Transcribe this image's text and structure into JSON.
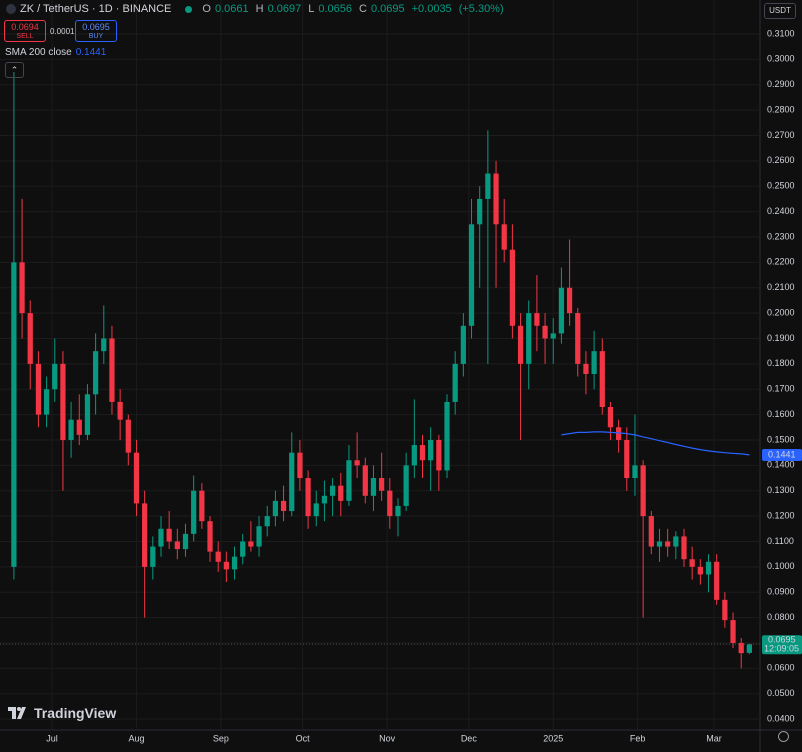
{
  "header": {
    "symbol": "ZK / TetherUS · 1D · BINANCE",
    "ohlc_labels": [
      "O",
      "H",
      "L",
      "C"
    ],
    "change": {
      "value": 0.0035,
      "label": "+0.0035"
    },
    "change_pct": {
      "value": 5.3,
      "label": "(+5.30%)"
    }
  },
  "trade": {
    "sell_price": 0.0694,
    "sell": "SELL",
    "spread": 0.0001,
    "buy_price": 0.0695,
    "buy": "BUY"
  },
  "currency": "USDT",
  "countdown": "12:09:05",
  "brand": "TradingView",
  "chart_data": {
    "type": "candlestick",
    "up_color": "#089981",
    "down_color": "#f23645",
    "open": [
      0.1,
      0.22,
      0.2,
      0.18,
      0.16,
      0.17,
      0.18,
      0.15,
      0.158,
      0.152,
      0.168,
      0.185,
      0.19,
      0.165,
      0.158,
      0.145,
      0.125,
      0.1,
      0.108,
      0.115,
      0.11,
      0.107,
      0.113,
      0.13,
      0.118,
      0.106,
      0.102,
      0.099,
      0.104,
      0.11,
      0.108,
      0.116,
      0.12,
      0.126,
      0.122,
      0.145,
      0.135,
      0.12,
      0.125,
      0.128,
      0.132,
      0.126,
      0.142,
      0.14,
      0.128,
      0.135,
      0.13,
      0.12,
      0.124,
      0.14,
      0.148,
      0.142,
      0.15,
      0.138,
      0.165,
      0.18,
      0.195,
      0.235,
      0.245,
      0.255,
      0.235,
      0.225,
      0.195,
      0.18,
      0.2,
      0.195,
      0.19,
      0.192,
      0.21,
      0.2,
      0.18,
      0.176,
      0.185,
      0.163,
      0.155,
      0.15,
      0.135,
      0.14,
      0.12,
      0.108,
      0.11,
      0.108,
      0.112,
      0.103,
      0.1,
      0.097,
      0.102,
      0.087,
      0.079,
      0.07,
      0.0661
    ],
    "high": [
      0.295,
      0.245,
      0.205,
      0.185,
      0.175,
      0.19,
      0.185,
      0.165,
      0.168,
      0.172,
      0.192,
      0.203,
      0.195,
      0.17,
      0.16,
      0.15,
      0.13,
      0.112,
      0.12,
      0.122,
      0.115,
      0.117,
      0.136,
      0.133,
      0.12,
      0.11,
      0.106,
      0.108,
      0.113,
      0.118,
      0.12,
      0.124,
      0.13,
      0.132,
      0.153,
      0.15,
      0.138,
      0.13,
      0.134,
      0.135,
      0.137,
      0.148,
      0.153,
      0.143,
      0.14,
      0.145,
      0.135,
      0.127,
      0.145,
      0.166,
      0.152,
      0.155,
      0.152,
      0.168,
      0.185,
      0.2,
      0.245,
      0.25,
      0.272,
      0.26,
      0.245,
      0.235,
      0.2,
      0.205,
      0.215,
      0.2,
      0.198,
      0.218,
      0.229,
      0.202,
      0.185,
      0.193,
      0.19,
      0.165,
      0.158,
      0.155,
      0.16,
      0.142,
      0.122,
      0.115,
      0.115,
      0.114,
      0.115,
      0.108,
      0.103,
      0.105,
      0.105,
      0.09,
      0.082,
      0.072,
      0.0697
    ],
    "low": [
      0.095,
      0.19,
      0.17,
      0.155,
      0.155,
      0.165,
      0.13,
      0.143,
      0.148,
      0.15,
      0.16,
      0.18,
      0.16,
      0.15,
      0.14,
      0.12,
      0.08,
      0.095,
      0.104,
      0.107,
      0.103,
      0.104,
      0.11,
      0.115,
      0.102,
      0.098,
      0.094,
      0.095,
      0.101,
      0.106,
      0.104,
      0.112,
      0.116,
      0.118,
      0.12,
      0.13,
      0.115,
      0.116,
      0.118,
      0.12,
      0.12,
      0.124,
      0.135,
      0.125,
      0.122,
      0.126,
      0.115,
      0.112,
      0.122,
      0.135,
      0.135,
      0.13,
      0.13,
      0.135,
      0.16,
      0.175,
      0.19,
      0.21,
      0.18,
      0.21,
      0.22,
      0.19,
      0.15,
      0.17,
      0.185,
      0.18,
      0.18,
      0.188,
      0.195,
      0.175,
      0.168,
      0.17,
      0.16,
      0.15,
      0.145,
      0.13,
      0.128,
      0.08,
      0.105,
      0.102,
      0.104,
      0.103,
      0.1,
      0.095,
      0.093,
      0.09,
      0.085,
      0.076,
      0.068,
      0.06,
      0.0656
    ],
    "close": [
      0.22,
      0.2,
      0.18,
      0.16,
      0.17,
      0.18,
      0.15,
      0.158,
      0.152,
      0.168,
      0.185,
      0.19,
      0.165,
      0.158,
      0.145,
      0.125,
      0.1,
      0.108,
      0.115,
      0.11,
      0.107,
      0.113,
      0.13,
      0.118,
      0.106,
      0.102,
      0.099,
      0.104,
      0.11,
      0.108,
      0.116,
      0.12,
      0.126,
      0.122,
      0.145,
      0.135,
      0.12,
      0.125,
      0.128,
      0.132,
      0.126,
      0.142,
      0.14,
      0.128,
      0.135,
      0.13,
      0.12,
      0.124,
      0.14,
      0.148,
      0.142,
      0.15,
      0.138,
      0.165,
      0.18,
      0.195,
      0.235,
      0.245,
      0.255,
      0.235,
      0.225,
      0.195,
      0.18,
      0.2,
      0.195,
      0.19,
      0.192,
      0.21,
      0.2,
      0.18,
      0.176,
      0.185,
      0.163,
      0.155,
      0.15,
      0.135,
      0.14,
      0.12,
      0.108,
      0.11,
      0.108,
      0.112,
      0.103,
      0.1,
      0.097,
      0.102,
      0.087,
      0.079,
      0.07,
      0.066,
      0.0695
    ],
    "overlay": {
      "name": "SMA 200 close",
      "color": "#2962ff",
      "values": [
        null,
        null,
        null,
        null,
        null,
        null,
        null,
        null,
        null,
        null,
        null,
        null,
        null,
        null,
        null,
        null,
        null,
        null,
        null,
        null,
        null,
        null,
        null,
        null,
        null,
        null,
        null,
        null,
        null,
        null,
        null,
        null,
        null,
        null,
        null,
        null,
        null,
        null,
        null,
        null,
        null,
        null,
        null,
        null,
        null,
        null,
        null,
        null,
        null,
        null,
        null,
        null,
        null,
        null,
        null,
        null,
        null,
        null,
        null,
        null,
        null,
        null,
        null,
        null,
        null,
        null,
        null,
        0.152,
        0.1525,
        0.153,
        0.153,
        0.1532,
        0.1532,
        0.153,
        0.1528,
        0.1525,
        0.152,
        0.1512,
        0.1505,
        0.1497,
        0.149,
        0.1482,
        0.1475,
        0.1468,
        0.1462,
        0.1457,
        0.1453,
        0.145,
        0.1447,
        0.1445,
        0.1441
      ]
    },
    "xlim": [
      -1.7,
      91.3
    ],
    "xticks": [
      {
        "value": 4.67,
        "label": "Jul"
      },
      {
        "value": 15,
        "label": "Aug"
      },
      {
        "value": 25.33,
        "label": "Sep"
      },
      {
        "value": 35.33,
        "label": "Oct"
      },
      {
        "value": 45.67,
        "label": "Nov"
      },
      {
        "value": 55.67,
        "label": "Dec"
      },
      {
        "value": 66,
        "label": "2025"
      },
      {
        "value": 76.33,
        "label": "Feb"
      },
      {
        "value": 85.67,
        "label": "Mar"
      }
    ],
    "ylim": [
      0.0357,
      0.3234
    ],
    "yticks": [
      {
        "value": 0.04,
        "label": "0.0400"
      },
      {
        "value": 0.05,
        "label": "0.0500"
      },
      {
        "value": 0.06,
        "label": "0.0600"
      },
      {
        "value": 0.07,
        "label": "0.0700"
      },
      {
        "value": 0.08,
        "label": "0.0800"
      },
      {
        "value": 0.09,
        "label": "0.0900"
      },
      {
        "value": 0.1,
        "label": "0.1000"
      },
      {
        "value": 0.11,
        "label": "0.1100"
      },
      {
        "value": 0.12,
        "label": "0.1200"
      },
      {
        "value": 0.13,
        "label": "0.1300"
      },
      {
        "value": 0.14,
        "label": "0.1400"
      },
      {
        "value": 0.15,
        "label": "0.1500"
      },
      {
        "value": 0.16,
        "label": "0.1600"
      },
      {
        "value": 0.17,
        "label": "0.1700"
      },
      {
        "value": 0.18,
        "label": "0.1800"
      },
      {
        "value": 0.19,
        "label": "0.1900"
      },
      {
        "value": 0.2,
        "label": "0.2000"
      },
      {
        "value": 0.21,
        "label": "0.2100"
      },
      {
        "value": 0.22,
        "label": "0.2200"
      },
      {
        "value": 0.23,
        "label": "0.2300"
      },
      {
        "value": 0.24,
        "label": "0.2400"
      },
      {
        "value": 0.25,
        "label": "0.2500"
      },
      {
        "value": 0.26,
        "label": "0.2600"
      },
      {
        "value": 0.27,
        "label": "0.2700"
      },
      {
        "value": 0.28,
        "label": "0.2800"
      },
      {
        "value": 0.29,
        "label": "0.2900"
      },
      {
        "value": 0.3,
        "label": "0.3000"
      },
      {
        "value": 0.31,
        "label": "0.3100"
      }
    ],
    "grid": true
  }
}
